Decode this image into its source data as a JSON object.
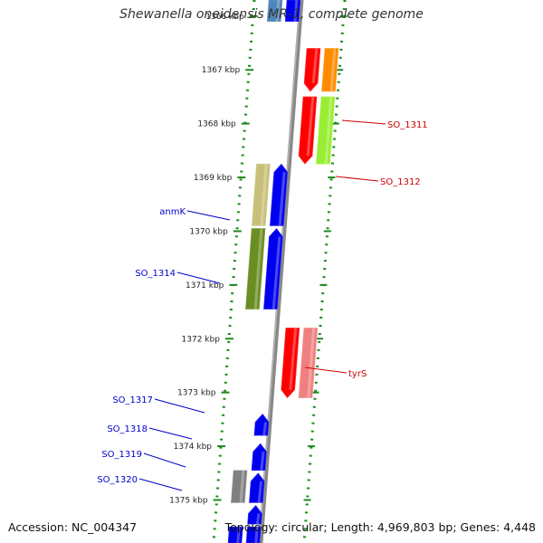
{
  "title": "Shewanella oneidensis MR-1, complete genome",
  "footer": {
    "accession": "Accession: NC_004347",
    "summary": "Topology: circular; Length: 4,969,803 bp; Genes: 4,448"
  },
  "axis": {
    "start_kbp": 1365.7,
    "end_kbp": 1375.8,
    "ticks": [
      {
        "kbp": 1366,
        "label": "1366 kbp"
      },
      {
        "kbp": 1367,
        "label": "1367 kbp"
      },
      {
        "kbp": 1368,
        "label": "1368 kbp"
      },
      {
        "kbp": 1369,
        "label": "1369 kbp"
      },
      {
        "kbp": 1370,
        "label": "1370 kbp"
      },
      {
        "kbp": 1371,
        "label": "1371 kbp"
      },
      {
        "kbp": 1372,
        "label": "1372 kbp"
      },
      {
        "kbp": 1373,
        "label": "1373 kbp"
      },
      {
        "kbp": 1374,
        "label": "1374 kbp"
      },
      {
        "kbp": 1375,
        "label": "1375 kbp"
      }
    ]
  },
  "colors": {
    "backbone": "#888888",
    "dotted_ring": "#1e8a1e",
    "forward_label": "#cc0000",
    "reverse_label": "#0000cc"
  },
  "features": [
    {
      "id": "f1",
      "lane": -1,
      "start": 1365.7,
      "end": 1366.1,
      "color": "#4f86b8",
      "arrow": "none"
    },
    {
      "id": "f2",
      "lane": 0,
      "start": 1365.7,
      "end": 1366.1,
      "color": "#0000ee",
      "arrow": "none"
    },
    {
      "id": "f3",
      "lane": 1,
      "start": 1366.6,
      "end": 1367.4,
      "color": "#ff0000",
      "arrow": "down"
    },
    {
      "id": "f4",
      "lane": 2,
      "start": 1366.6,
      "end": 1367.4,
      "color": "#ff8c00",
      "arrow": "none",
      "label": "SO_1311"
    },
    {
      "id": "f5",
      "lane": 1,
      "start": 1367.5,
      "end": 1368.75,
      "color": "#ff0000",
      "arrow": "down"
    },
    {
      "id": "f6",
      "lane": 2,
      "start": 1367.5,
      "end": 1368.75,
      "color": "#99ee33",
      "arrow": "none",
      "label": "SO_1312"
    },
    {
      "id": "f7",
      "lane": -1,
      "start": 1368.75,
      "end": 1369.9,
      "color": "#c8c07a",
      "arrow": "none",
      "label": "anmK"
    },
    {
      "id": "f8",
      "lane": 0,
      "start": 1368.75,
      "end": 1369.9,
      "color": "#0000ee",
      "arrow": "up"
    },
    {
      "id": "f9",
      "lane": -1,
      "start": 1369.95,
      "end": 1371.45,
      "color": "#6b8e23",
      "arrow": "none",
      "label": "SO_1314"
    },
    {
      "id": "f10",
      "lane": 0,
      "start": 1369.95,
      "end": 1371.45,
      "color": "#0000ee",
      "arrow": "up"
    },
    {
      "id": "f11",
      "lane": 1,
      "start": 1371.8,
      "end": 1373.1,
      "color": "#ff0000",
      "arrow": "down"
    },
    {
      "id": "f12",
      "lane": 2,
      "start": 1371.8,
      "end": 1373.1,
      "color": "#f08080",
      "arrow": "none",
      "label": "tyrS"
    },
    {
      "id": "f13",
      "lane": 0,
      "start": 1373.4,
      "end": 1373.8,
      "color": "#0000ee",
      "arrow": "up",
      "label": "SO_1317"
    },
    {
      "id": "f14",
      "lane": 0,
      "start": 1373.95,
      "end": 1374.45,
      "color": "#0000ee",
      "arrow": "up",
      "label": "SO_1318"
    },
    {
      "id": "f15",
      "lane": -1,
      "start": 1374.45,
      "end": 1375.05,
      "color": "#808080",
      "arrow": "none",
      "label": "SO_1319"
    },
    {
      "id": "f16",
      "lane": 0,
      "start": 1374.5,
      "end": 1375.05,
      "color": "#0000ee",
      "arrow": "up"
    },
    {
      "id": "f17",
      "lane": 0,
      "start": 1375.1,
      "end": 1375.45,
      "color": "#0000ee",
      "arrow": "up",
      "label": "SO_1320"
    },
    {
      "id": "f18",
      "lane": -1,
      "start": 1375.5,
      "end": 1375.8,
      "color": "#0000ee",
      "arrow": "none"
    },
    {
      "id": "f19",
      "lane": 0,
      "start": 1375.5,
      "end": 1375.8,
      "color": "#0000ee",
      "arrow": "none"
    }
  ]
}
